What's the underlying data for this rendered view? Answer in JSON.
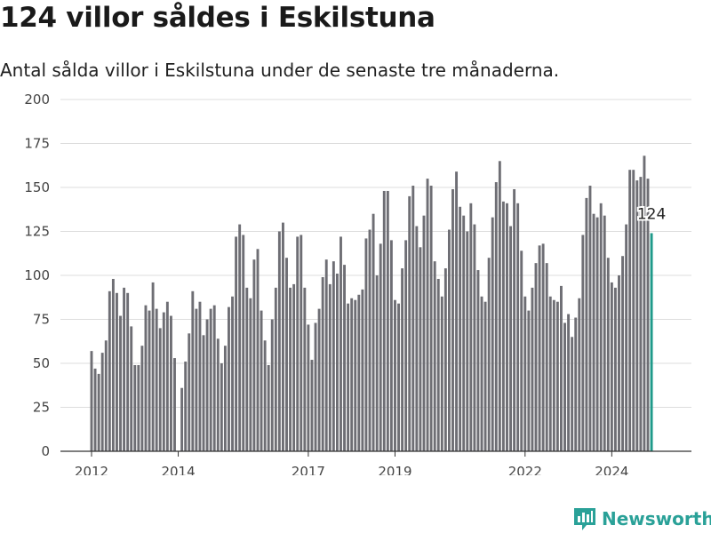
{
  "title": "124 villor såldes i Eskilstuna",
  "subtitle": "Antal sålda villor i Eskilstuna under de senaste tre månaderna.",
  "brand": "Newsworthy",
  "colors": {
    "bar": "#6e6e74",
    "highlight": "#1f9a8a",
    "grid": "#dcdcdc",
    "brand": "#2aa198"
  },
  "chart_data": {
    "type": "bar",
    "ylim": [
      0,
      200
    ],
    "y_ticks": [
      "0",
      "25",
      "50",
      "75",
      "100",
      "125",
      "150",
      "175",
      "200"
    ],
    "x_ticks": [
      {
        "label": "2012",
        "index": 0
      },
      {
        "label": "2014",
        "index": 24
      },
      {
        "label": "2017",
        "index": 60
      },
      {
        "label": "2019",
        "index": 84
      },
      {
        "label": "2022",
        "index": 120
      },
      {
        "label": "2024",
        "index": 144
      }
    ],
    "values": [
      57,
      47,
      44,
      56,
      63,
      91,
      98,
      90,
      77,
      93,
      90,
      71,
      49,
      49,
      60,
      83,
      80,
      96,
      81,
      70,
      79,
      85,
      77,
      53,
      0,
      36,
      51,
      67,
      91,
      81,
      85,
      66,
      75,
      81,
      83,
      64,
      50,
      60,
      82,
      88,
      122,
      129,
      123,
      93,
      87,
      109,
      115,
      80,
      63,
      49,
      75,
      93,
      125,
      130,
      110,
      93,
      95,
      122,
      123,
      93,
      72,
      52,
      73,
      81,
      99,
      109,
      95,
      108,
      101,
      122,
      106,
      84,
      87,
      86,
      89,
      92,
      121,
      126,
      135,
      100,
      118,
      148,
      148,
      120,
      86,
      84,
      104,
      120,
      145,
      151,
      128,
      116,
      134,
      155,
      151,
      108,
      98,
      88,
      104,
      126,
      149,
      159,
      139,
      134,
      125,
      141,
      129,
      103,
      88,
      85,
      110,
      133,
      153,
      165,
      142,
      141,
      128,
      149,
      141,
      114,
      88,
      80,
      93,
      107,
      117,
      118,
      107,
      88,
      86,
      85,
      94,
      73,
      78,
      65,
      76,
      87,
      123,
      144,
      151,
      135,
      133,
      141,
      134,
      110,
      96,
      93,
      100,
      111,
      129,
      160,
      160,
      154,
      156,
      168,
      155,
      124
    ],
    "highlight_index": 155,
    "annotation": "124"
  }
}
